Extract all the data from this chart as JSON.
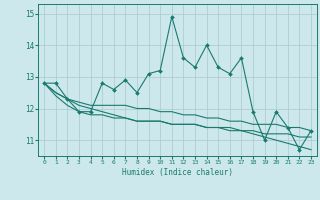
{
  "xlabel": "Humidex (Indice chaleur)",
  "background_color": "#cce8ec",
  "grid_color": "#b0cdd2",
  "line_color": "#1a7a6e",
  "xlim": [
    -0.5,
    23.5
  ],
  "ylim": [
    10.5,
    15.3
  ],
  "yticks": [
    11,
    12,
    13,
    14,
    15
  ],
  "xticks": [
    0,
    1,
    2,
    3,
    4,
    5,
    6,
    7,
    8,
    9,
    10,
    11,
    12,
    13,
    14,
    15,
    16,
    17,
    18,
    19,
    20,
    21,
    22,
    23
  ],
  "series1": [
    12.8,
    12.8,
    12.3,
    11.9,
    11.9,
    12.8,
    12.6,
    12.9,
    12.5,
    13.1,
    13.2,
    14.9,
    13.6,
    13.3,
    14.0,
    13.3,
    13.1,
    13.6,
    11.9,
    11.0,
    11.9,
    11.4,
    10.7,
    11.3
  ],
  "series2": [
    12.8,
    12.5,
    12.3,
    12.2,
    12.1,
    12.1,
    12.1,
    12.1,
    12.0,
    12.0,
    11.9,
    11.9,
    11.8,
    11.8,
    11.7,
    11.7,
    11.6,
    11.6,
    11.5,
    11.5,
    11.5,
    11.4,
    11.4,
    11.3
  ],
  "series3": [
    12.8,
    12.5,
    12.3,
    12.1,
    12.0,
    11.9,
    11.8,
    11.7,
    11.6,
    11.6,
    11.6,
    11.5,
    11.5,
    11.5,
    11.4,
    11.4,
    11.4,
    11.3,
    11.3,
    11.2,
    11.2,
    11.2,
    11.1,
    11.1
  ],
  "series4": [
    12.8,
    12.4,
    12.1,
    11.9,
    11.8,
    11.8,
    11.7,
    11.7,
    11.6,
    11.6,
    11.6,
    11.5,
    11.5,
    11.5,
    11.4,
    11.4,
    11.3,
    11.3,
    11.2,
    11.1,
    11.0,
    10.9,
    10.8,
    10.7
  ]
}
